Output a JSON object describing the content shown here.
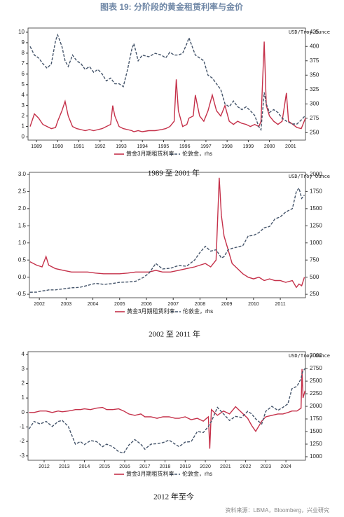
{
  "title": "图表 19: 分阶段的黄金租赁利率与金价",
  "source": "资料来源：LBMA，Bloomberg，兴业研究",
  "chart_data": [
    {
      "type": "line",
      "caption": "1989 至 2001 年",
      "y2label": "USD/Troy Ounce",
      "x": [
        1988.7,
        1988.9,
        1989.1,
        1989.3,
        1989.5,
        1989.7,
        1989.9,
        1990.0,
        1990.2,
        1990.35,
        1990.5,
        1990.7,
        1990.9,
        1991.1,
        1991.3,
        1991.5,
        1991.7,
        1991.9,
        1992.1,
        1992.3,
        1992.5,
        1992.6,
        1992.7,
        1992.9,
        1993.1,
        1993.3,
        1993.5,
        1993.6,
        1993.8,
        1994.0,
        1994.3,
        1994.6,
        1994.9,
        1995.1,
        1995.3,
        1995.5,
        1995.6,
        1995.7,
        1995.9,
        1996.1,
        1996.2,
        1996.4,
        1996.5,
        1996.7,
        1996.9,
        1997.1,
        1997.3,
        1997.5,
        1997.7,
        1997.9,
        1998.1,
        1998.3,
        1998.5,
        1998.7,
        1998.9,
        1999.1,
        1999.3,
        1999.5,
        1999.6,
        1999.75,
        1999.85,
        2000.0,
        2000.2,
        2000.4,
        2000.6,
        2000.8,
        2000.9,
        2001.1,
        2001.3,
        2001.5,
        2001.7
      ],
      "xlim": [
        1988.6,
        2001.7
      ],
      "xticks": [
        1989,
        1990,
        1991,
        1992,
        1993,
        1994,
        1995,
        1996,
        1997,
        1998,
        1999,
        2000,
        2001
      ],
      "ylim": [
        -0.3,
        10.4
      ],
      "yticks": [
        0,
        1,
        2,
        3,
        4,
        5,
        6,
        7,
        8,
        9,
        10
      ],
      "y2lim": [
        237,
        432
      ],
      "y2ticks": [
        250,
        275,
        300,
        325,
        350,
        375,
        400,
        425
      ],
      "series": [
        {
          "name": "黄金3月期租赁利率",
          "color": "#c5314a",
          "style": "solid",
          "values": [
            1.0,
            2.2,
            1.8,
            1.2,
            1.0,
            0.8,
            0.9,
            1.5,
            2.5,
            3.4,
            2.0,
            1.0,
            0.8,
            0.7,
            0.6,
            0.7,
            0.6,
            0.7,
            0.8,
            1.0,
            1.2,
            3.0,
            2.0,
            1.0,
            0.8,
            0.7,
            0.6,
            0.5,
            0.6,
            0.5,
            0.6,
            0.6,
            0.7,
            0.8,
            1.0,
            1.5,
            5.5,
            2.5,
            1.0,
            1.2,
            1.8,
            2.0,
            4.0,
            2.0,
            1.5,
            2.5,
            4.0,
            2.5,
            2.0,
            3.0,
            1.5,
            1.2,
            1.5,
            1.3,
            1.2,
            1.0,
            1.2,
            1.0,
            1.5,
            9.1,
            3.0,
            2.0,
            1.5,
            1.2,
            1.5,
            4.2,
            1.5,
            1.2,
            0.9,
            0.8,
            1.8
          ]
        },
        {
          "name": "伦敦金，rhs",
          "color": "#44546a",
          "style": "dashed",
          "axis": "y2",
          "values": [
            400,
            385,
            380,
            370,
            362,
            370,
            410,
            420,
            400,
            375,
            365,
            385,
            375,
            370,
            360,
            365,
            355,
            360,
            352,
            340,
            345,
            340,
            335,
            335,
            330,
            360,
            395,
            405,
            375,
            385,
            382,
            388,
            385,
            380,
            390,
            385,
            385,
            385,
            388,
            405,
            415,
            395,
            385,
            380,
            375,
            350,
            345,
            335,
            325,
            300,
            295,
            305,
            295,
            290,
            295,
            288,
            280,
            260,
            255,
            320,
            300,
            285,
            290,
            285,
            275,
            270,
            268,
            265,
            265,
            272,
            280
          ]
        }
      ]
    },
    {
      "type": "line",
      "caption": "2002 至 2011 年",
      "y2label": "USD/Troy Ounce",
      "x": [
        2001.65,
        2001.9,
        2002.1,
        2002.25,
        2002.35,
        2002.6,
        2002.9,
        2003.2,
        2003.5,
        2003.8,
        2004.1,
        2004.4,
        2004.7,
        2005.0,
        2005.3,
        2005.6,
        2005.9,
        2006.1,
        2006.35,
        2006.6,
        2006.9,
        2007.2,
        2007.5,
        2007.8,
        2008.0,
        2008.2,
        2008.4,
        2008.6,
        2008.72,
        2008.8,
        2008.9,
        2009.05,
        2009.2,
        2009.4,
        2009.6,
        2009.8,
        2010.0,
        2010.2,
        2010.4,
        2010.6,
        2010.8,
        2011.0,
        2011.2,
        2011.45,
        2011.6,
        2011.7,
        2011.8,
        2011.9
      ],
      "xlim": [
        2001.63,
        2011.94
      ],
      "xticks": [
        2002,
        2003,
        2004,
        2005,
        2006,
        2007,
        2008,
        2009,
        2010,
        2011
      ],
      "ylim": [
        -0.6,
        3.06
      ],
      "yticks": [
        {
          "value": 3,
          "label": "3.0"
        },
        2.5,
        {
          "value": 2,
          "label": "2.0"
        },
        1.5,
        {
          "value": 1,
          "label": "1.0"
        },
        0.5,
        {
          "value": 0,
          "label": "0.0"
        },
        -0.5
      ],
      "y2lim": [
        200,
        2030
      ],
      "y2ticks": [
        250,
        500,
        750,
        1000,
        1250,
        1500,
        1750,
        2000
      ],
      "series": [
        {
          "name": "黄金3月期租赁利率",
          "color": "#c5314a",
          "style": "solid",
          "values": [
            0.45,
            0.35,
            0.3,
            0.6,
            0.35,
            0.25,
            0.2,
            0.15,
            0.15,
            0.15,
            0.12,
            0.1,
            0.1,
            0.1,
            0.12,
            0.15,
            0.15,
            0.15,
            0.2,
            0.15,
            0.15,
            0.2,
            0.25,
            0.3,
            0.35,
            0.4,
            0.3,
            0.5,
            2.9,
            1.8,
            1.2,
            0.8,
            0.4,
            0.25,
            0.1,
            0.0,
            -0.05,
            0.0,
            -0.1,
            -0.05,
            -0.1,
            -0.1,
            -0.15,
            -0.1,
            -0.3,
            -0.2,
            -0.25,
            0.0
          ]
        },
        {
          "name": "伦敦金，rhs",
          "color": "#44546a",
          "style": "dashed",
          "axis": "y2",
          "values": [
            280,
            282,
            300,
            305,
            315,
            315,
            330,
            345,
            350,
            380,
            410,
            395,
            405,
            425,
            430,
            440,
            500,
            560,
            700,
            620,
            630,
            670,
            660,
            750,
            860,
            950,
            880,
            900,
            830,
            780,
            800,
            900,
            920,
            940,
            960,
            1100,
            1110,
            1150,
            1220,
            1240,
            1350,
            1380,
            1450,
            1500,
            1750,
            1800,
            1650,
            1700
          ]
        }
      ]
    },
    {
      "type": "line",
      "caption": "2012 年至今",
      "y2label": "USD/Troy Ounce",
      "x": [
        2011.25,
        2011.5,
        2011.8,
        2012.1,
        2012.4,
        2012.7,
        2012.9,
        2013.2,
        2013.4,
        2013.55,
        2013.8,
        2014.0,
        2014.3,
        2014.6,
        2014.9,
        2015.1,
        2015.4,
        2015.7,
        2015.95,
        2016.2,
        2016.5,
        2016.8,
        2017.0,
        2017.3,
        2017.6,
        2017.9,
        2018.2,
        2018.5,
        2018.7,
        2019.0,
        2019.3,
        2019.6,
        2019.9,
        2020.15,
        2020.22,
        2020.3,
        2020.6,
        2020.9,
        2021.2,
        2021.5,
        2021.8,
        2022.1,
        2022.3,
        2022.5,
        2022.8,
        2023.0,
        2023.3,
        2023.6,
        2023.85,
        2024.1,
        2024.3,
        2024.55,
        2024.75,
        2024.8,
        2024.85,
        2024.95
      ],
      "xlim": [
        2011.2,
        2024.97
      ],
      "xticks": [
        2012,
        2013,
        2014,
        2015,
        2016,
        2017,
        2018,
        2019,
        2020,
        2021,
        2022,
        2023,
        2024
      ],
      "ylim": [
        -3.3,
        4.2
      ],
      "yticks": [
        -3,
        -2,
        -1,
        0,
        1,
        2,
        3,
        4
      ],
      "y2lim": [
        930,
        3085
      ],
      "y2ticks": [
        1000,
        1250,
        1500,
        1750,
        2000,
        2250,
        2500,
        2750,
        3000
      ],
      "series": [
        {
          "name": "黄金3月期租赁利率",
          "color": "#c5314a",
          "style": "solid",
          "values": [
            0.0,
            0.0,
            0.1,
            0.1,
            0.0,
            0.1,
            0.05,
            0.1,
            0.15,
            0.2,
            0.2,
            0.25,
            0.2,
            0.3,
            0.35,
            0.2,
            0.2,
            0.25,
            0.1,
            -0.1,
            -0.2,
            -0.1,
            -0.3,
            -0.3,
            -0.4,
            -0.3,
            -0.3,
            -0.4,
            -0.4,
            -0.3,
            -0.5,
            -0.4,
            -0.6,
            -0.3,
            -2.5,
            0.2,
            -0.2,
            0.1,
            -0.1,
            0.4,
            0.0,
            -0.4,
            -0.9,
            -1.3,
            -0.6,
            -0.3,
            -0.2,
            -0.1,
            -0.1,
            0.0,
            0.1,
            0.1,
            0.3,
            3.0,
            1.0,
            1.5
          ]
        },
        {
          "name": "伦敦金，rhs",
          "color": "#44546a",
          "style": "dashed",
          "axis": "y2",
          "values": [
            1550,
            1700,
            1650,
            1700,
            1600,
            1700,
            1720,
            1600,
            1400,
            1250,
            1300,
            1240,
            1320,
            1300,
            1200,
            1250,
            1200,
            1100,
            1070,
            1230,
            1340,
            1250,
            1150,
            1250,
            1260,
            1280,
            1330,
            1250,
            1200,
            1290,
            1300,
            1500,
            1480,
            1600,
            1650,
            1700,
            1980,
            1850,
            1720,
            1800,
            1780,
            1900,
            1850,
            1750,
            1650,
            1900,
            2000,
            1920,
            1980,
            2050,
            2350,
            2400,
            2550,
            2650,
            2700,
            2750
          ]
        }
      ]
    }
  ]
}
